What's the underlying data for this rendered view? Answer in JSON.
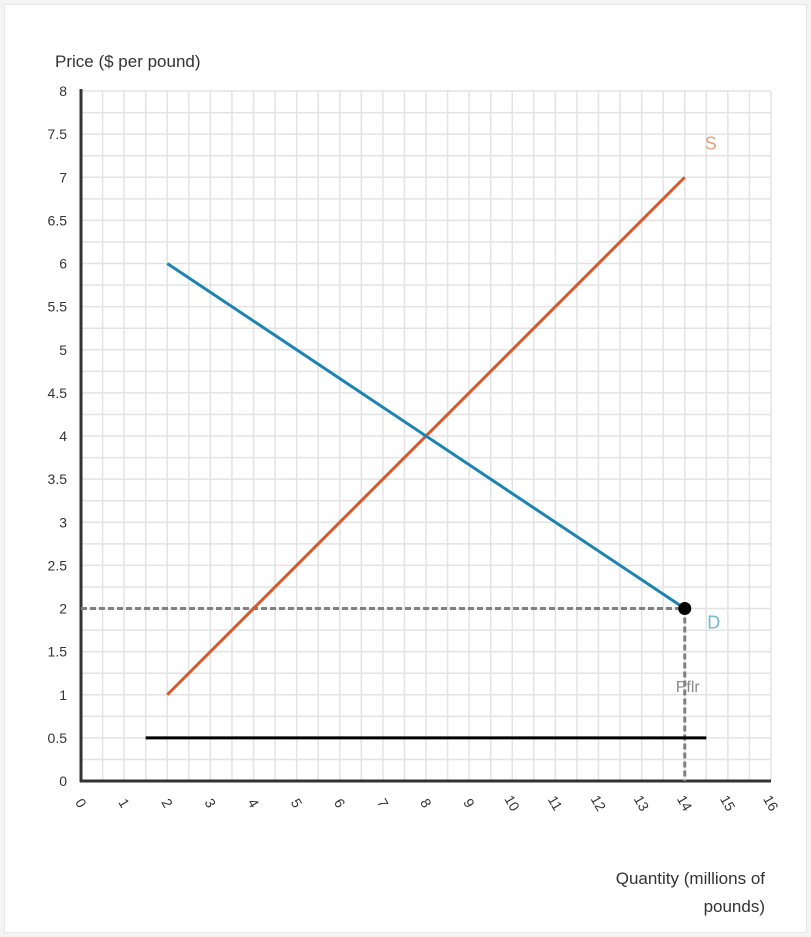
{
  "chart_data": {
    "type": "line",
    "ylabel": "Price ($ per pound)",
    "xlabel_lines": [
      "Quantity (millions of",
      "pounds)"
    ],
    "xlim": [
      0,
      16
    ],
    "ylim": [
      0,
      8
    ],
    "x_ticks": [
      "0",
      "1",
      "2",
      "3",
      "4",
      "5",
      "6",
      "7",
      "8",
      "9",
      "10",
      "11",
      "12",
      "13",
      "14",
      "15",
      "16"
    ],
    "y_ticks": [
      "0",
      "0.5",
      "1",
      "1.5",
      "2",
      "2.5",
      "3",
      "3.5",
      "4",
      "4.5",
      "5",
      "5.5",
      "6",
      "6.5",
      "7",
      "7.5",
      "8"
    ],
    "grid": true,
    "series": [
      {
        "name": "S",
        "color": "#d9582b",
        "label_color": "#e8a07a",
        "points": [
          [
            2,
            1
          ],
          [
            14,
            7
          ]
        ]
      },
      {
        "name": "D",
        "color": "#1b84b0",
        "label_color": "#6fb8d6",
        "points": [
          [
            2,
            6
          ],
          [
            14,
            2
          ]
        ]
      }
    ],
    "marker": {
      "x": 14,
      "y": 2,
      "color": "#000000"
    },
    "guides": [
      {
        "kind": "horizontal-dashed",
        "y": 2,
        "x_from": 0,
        "x_to": 14,
        "color": "#808080"
      },
      {
        "kind": "vertical-dashed",
        "x": 14,
        "y_from": 0,
        "y_to": 2,
        "color": "#808080"
      }
    ],
    "floor_line": {
      "label": "Pflr",
      "y": 0.5,
      "x_from": 1.5,
      "x_to": 14.5,
      "color": "#000000"
    }
  }
}
